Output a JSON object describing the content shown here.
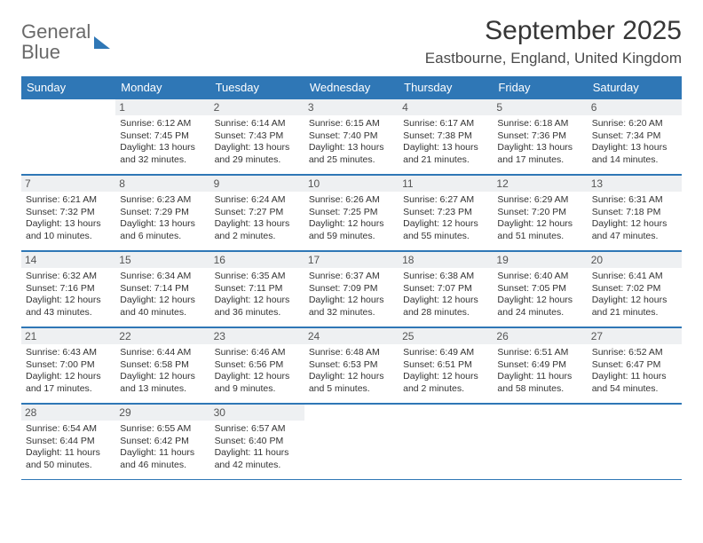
{
  "brand": {
    "line1": "General",
    "line2": "Blue"
  },
  "title": "September 2025",
  "location": "Eastbourne, England, United Kingdom",
  "columns": [
    "Sunday",
    "Monday",
    "Tuesday",
    "Wednesday",
    "Thursday",
    "Friday",
    "Saturday"
  ],
  "style": {
    "header_bg": "#2f77b6",
    "header_text": "#ffffff",
    "daynum_bg": "#eef0f2",
    "rule_color": "#2f77b6",
    "body_text": "#333333",
    "title_fontsize": 30,
    "column_header_fontsize": 13,
    "info_fontsize": 10.5
  },
  "first_weekday_offset": 1,
  "days": [
    {
      "n": 1,
      "sunrise": "6:12 AM",
      "sunset": "7:45 PM",
      "daylight": "13 hours and 32 minutes."
    },
    {
      "n": 2,
      "sunrise": "6:14 AM",
      "sunset": "7:43 PM",
      "daylight": "13 hours and 29 minutes."
    },
    {
      "n": 3,
      "sunrise": "6:15 AM",
      "sunset": "7:40 PM",
      "daylight": "13 hours and 25 minutes."
    },
    {
      "n": 4,
      "sunrise": "6:17 AM",
      "sunset": "7:38 PM",
      "daylight": "13 hours and 21 minutes."
    },
    {
      "n": 5,
      "sunrise": "6:18 AM",
      "sunset": "7:36 PM",
      "daylight": "13 hours and 17 minutes."
    },
    {
      "n": 6,
      "sunrise": "6:20 AM",
      "sunset": "7:34 PM",
      "daylight": "13 hours and 14 minutes."
    },
    {
      "n": 7,
      "sunrise": "6:21 AM",
      "sunset": "7:32 PM",
      "daylight": "13 hours and 10 minutes."
    },
    {
      "n": 8,
      "sunrise": "6:23 AM",
      "sunset": "7:29 PM",
      "daylight": "13 hours and 6 minutes."
    },
    {
      "n": 9,
      "sunrise": "6:24 AM",
      "sunset": "7:27 PM",
      "daylight": "13 hours and 2 minutes."
    },
    {
      "n": 10,
      "sunrise": "6:26 AM",
      "sunset": "7:25 PM",
      "daylight": "12 hours and 59 minutes."
    },
    {
      "n": 11,
      "sunrise": "6:27 AM",
      "sunset": "7:23 PM",
      "daylight": "12 hours and 55 minutes."
    },
    {
      "n": 12,
      "sunrise": "6:29 AM",
      "sunset": "7:20 PM",
      "daylight": "12 hours and 51 minutes."
    },
    {
      "n": 13,
      "sunrise": "6:31 AM",
      "sunset": "7:18 PM",
      "daylight": "12 hours and 47 minutes."
    },
    {
      "n": 14,
      "sunrise": "6:32 AM",
      "sunset": "7:16 PM",
      "daylight": "12 hours and 43 minutes."
    },
    {
      "n": 15,
      "sunrise": "6:34 AM",
      "sunset": "7:14 PM",
      "daylight": "12 hours and 40 minutes."
    },
    {
      "n": 16,
      "sunrise": "6:35 AM",
      "sunset": "7:11 PM",
      "daylight": "12 hours and 36 minutes."
    },
    {
      "n": 17,
      "sunrise": "6:37 AM",
      "sunset": "7:09 PM",
      "daylight": "12 hours and 32 minutes."
    },
    {
      "n": 18,
      "sunrise": "6:38 AM",
      "sunset": "7:07 PM",
      "daylight": "12 hours and 28 minutes."
    },
    {
      "n": 19,
      "sunrise": "6:40 AM",
      "sunset": "7:05 PM",
      "daylight": "12 hours and 24 minutes."
    },
    {
      "n": 20,
      "sunrise": "6:41 AM",
      "sunset": "7:02 PM",
      "daylight": "12 hours and 21 minutes."
    },
    {
      "n": 21,
      "sunrise": "6:43 AM",
      "sunset": "7:00 PM",
      "daylight": "12 hours and 17 minutes."
    },
    {
      "n": 22,
      "sunrise": "6:44 AM",
      "sunset": "6:58 PM",
      "daylight": "12 hours and 13 minutes."
    },
    {
      "n": 23,
      "sunrise": "6:46 AM",
      "sunset": "6:56 PM",
      "daylight": "12 hours and 9 minutes."
    },
    {
      "n": 24,
      "sunrise": "6:48 AM",
      "sunset": "6:53 PM",
      "daylight": "12 hours and 5 minutes."
    },
    {
      "n": 25,
      "sunrise": "6:49 AM",
      "sunset": "6:51 PM",
      "daylight": "12 hours and 2 minutes."
    },
    {
      "n": 26,
      "sunrise": "6:51 AM",
      "sunset": "6:49 PM",
      "daylight": "11 hours and 58 minutes."
    },
    {
      "n": 27,
      "sunrise": "6:52 AM",
      "sunset": "6:47 PM",
      "daylight": "11 hours and 54 minutes."
    },
    {
      "n": 28,
      "sunrise": "6:54 AM",
      "sunset": "6:44 PM",
      "daylight": "11 hours and 50 minutes."
    },
    {
      "n": 29,
      "sunrise": "6:55 AM",
      "sunset": "6:42 PM",
      "daylight": "11 hours and 46 minutes."
    },
    {
      "n": 30,
      "sunrise": "6:57 AM",
      "sunset": "6:40 PM",
      "daylight": "11 hours and 42 minutes."
    }
  ]
}
